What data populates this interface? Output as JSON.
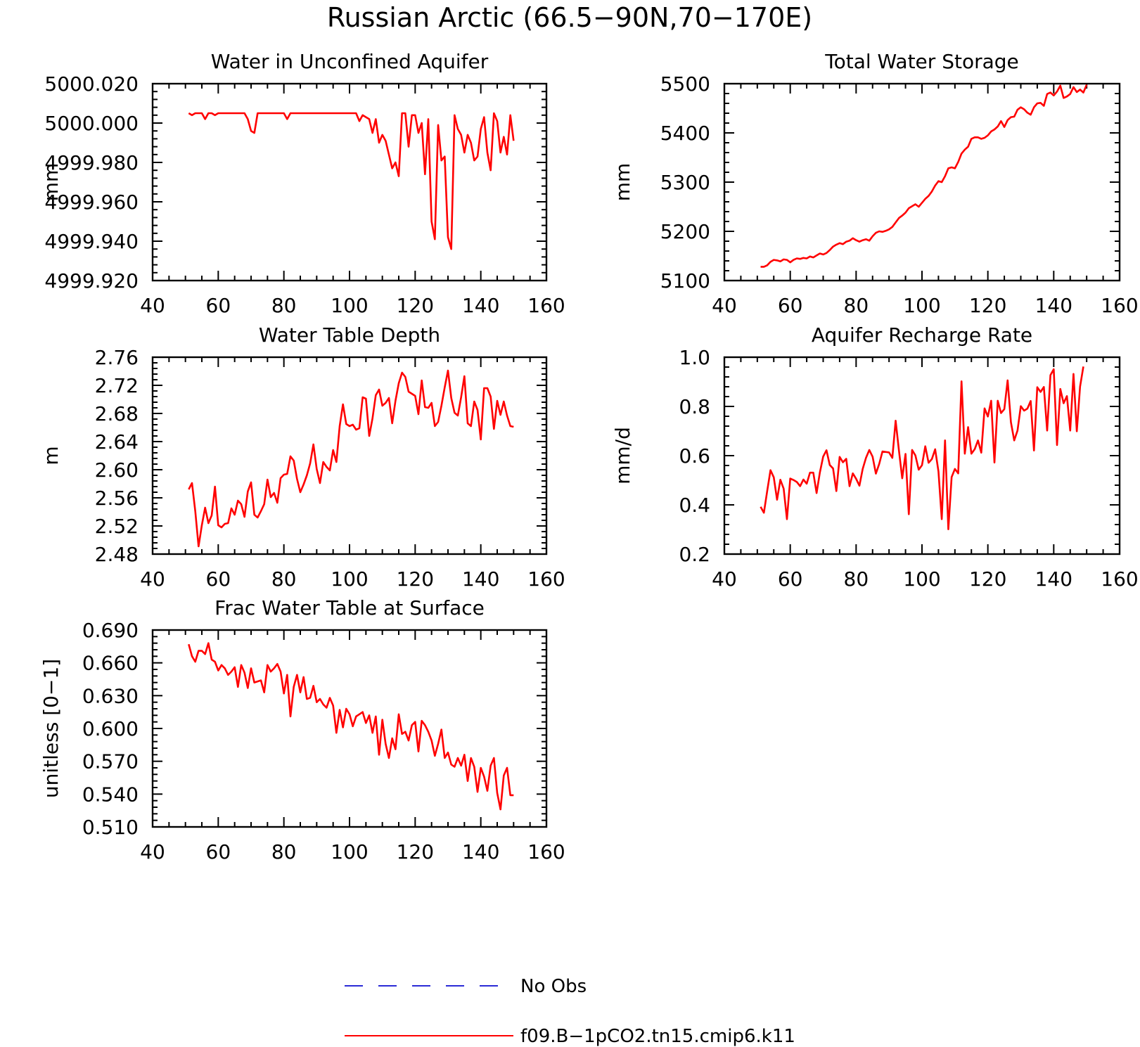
{
  "figure": {
    "title": "Russian Arctic (66.5−90N,70−170E)"
  },
  "legend": {
    "placement": "bottom-center",
    "entries": [
      {
        "label": "No Obs",
        "color": "#2b2bd6",
        "style": "dashed"
      },
      {
        "label": "f09.B−1pCO2.tn15.cmip6.k11",
        "color": "#ff0000",
        "style": "solid"
      }
    ]
  },
  "chart_data": [
    {
      "type": "line",
      "title": "Water in Unconfined Aquifer",
      "ylabel": "mm",
      "xlim": [
        40,
        160
      ],
      "ylim": [
        4999.92,
        5000.02
      ],
      "xticks": [
        "40",
        "60",
        "80",
        "100",
        "120",
        "140",
        "160"
      ],
      "yticks": [
        "4999.920",
        "4999.940",
        "4999.960",
        "4999.980",
        "5000.000",
        "5000.020"
      ],
      "x_start": 51,
      "x_step": 1,
      "series": [
        {
          "color": "#ff0000",
          "values": [
            5000.005,
            5000.004,
            5000.005,
            5000.005,
            5000.005,
            5000.002,
            5000.005,
            5000.005,
            5000.004,
            5000.005,
            5000.005,
            5000.005,
            5000.005,
            5000.005,
            5000.005,
            5000.005,
            5000.005,
            5000.005,
            5000.002,
            4999.996,
            4999.995,
            5000.005,
            5000.005,
            5000.005,
            5000.005,
            5000.005,
            5000.005,
            5000.005,
            5000.005,
            5000.005,
            5000.002,
            5000.005,
            5000.005,
            5000.005,
            5000.005,
            5000.005,
            5000.005,
            5000.005,
            5000.005,
            5000.005,
            5000.005,
            5000.005,
            5000.005,
            5000.005,
            5000.005,
            5000.005,
            5000.005,
            5000.005,
            5000.005,
            5000.005,
            5000.005,
            5000.005,
            5000.001,
            5000.004,
            5000.003,
            5000.002,
            4999.995,
            5000.002,
            4999.99,
            4999.994,
            4999.991,
            4999.984,
            4999.977,
            4999.98,
            4999.973,
            5000.005,
            5000.005,
            4999.988,
            5000.004,
            5000.004,
            4999.995,
            5000.0,
            4999.974,
            5000.002,
            4999.95,
            4999.941,
            4999.999,
            4999.981,
            4999.983,
            4999.942,
            4999.936,
            5000.004,
            4999.997,
            4999.994,
            4999.985,
            4999.994,
            4999.99,
            4999.981,
            4999.983,
            4999.997,
            5000.003,
            4999.985,
            4999.976,
            5000.005,
            5000.001,
            4999.985,
            4999.993,
            4999.984,
            5000.004,
            4999.991
          ]
        }
      ]
    },
    {
      "type": "line",
      "title": "Total Water Storage",
      "ylabel": "mm",
      "xlim": [
        40,
        160
      ],
      "ylim": [
        5100,
        5500
      ],
      "xticks": [
        "40",
        "60",
        "80",
        "100",
        "120",
        "140",
        "160"
      ],
      "yticks": [
        "5100",
        "5200",
        "5300",
        "5400",
        "5500"
      ],
      "x_start": 51,
      "x_step": 1,
      "series": [
        {
          "color": "#ff0000",
          "values": [
            5128,
            5128,
            5131,
            5138,
            5142,
            5141,
            5139,
            5143,
            5142,
            5137,
            5142,
            5145,
            5144,
            5146,
            5145,
            5149,
            5147,
            5151,
            5155,
            5153,
            5156,
            5162,
            5169,
            5173,
            5176,
            5174,
            5179,
            5181,
            5186,
            5182,
            5179,
            5182,
            5184,
            5181,
            5190,
            5197,
            5200,
            5199,
            5201,
            5204,
            5209,
            5218,
            5227,
            5232,
            5238,
            5247,
            5251,
            5255,
            5250,
            5258,
            5266,
            5272,
            5281,
            5293,
            5302,
            5300,
            5312,
            5328,
            5330,
            5328,
            5341,
            5358,
            5366,
            5372,
            5388,
            5391,
            5391,
            5388,
            5390,
            5395,
            5403,
            5407,
            5413,
            5424,
            5412,
            5426,
            5432,
            5433,
            5447,
            5452,
            5448,
            5441,
            5437,
            5452,
            5460,
            5461,
            5455,
            5479,
            5482,
            5476,
            5484,
            5496,
            5471,
            5474,
            5479,
            5493,
            5483,
            5488,
            5482,
            5498
          ]
        }
      ]
    },
    {
      "type": "line",
      "title": "Water Table Depth",
      "ylabel": "m",
      "xlim": [
        40,
        160
      ],
      "ylim": [
        2.48,
        2.76
      ],
      "xticks": [
        "40",
        "60",
        "80",
        "100",
        "120",
        "140",
        "160"
      ],
      "yticks": [
        "2.48",
        "2.52",
        "2.56",
        "2.60",
        "2.64",
        "2.68",
        "2.72",
        "2.76"
      ],
      "x_start": 51,
      "x_step": 1,
      "series": [
        {
          "color": "#ff0000",
          "values": [
            2.572,
            2.581,
            2.541,
            2.491,
            2.521,
            2.546,
            2.524,
            2.535,
            2.576,
            2.521,
            2.518,
            2.523,
            2.524,
            2.545,
            2.536,
            2.556,
            2.551,
            2.533,
            2.569,
            2.582,
            2.536,
            2.532,
            2.541,
            2.551,
            2.586,
            2.561,
            2.567,
            2.553,
            2.588,
            2.593,
            2.594,
            2.619,
            2.613,
            2.587,
            2.568,
            2.579,
            2.592,
            2.609,
            2.636,
            2.601,
            2.581,
            2.611,
            2.604,
            2.599,
            2.628,
            2.611,
            2.662,
            2.693,
            2.665,
            2.662,
            2.664,
            2.657,
            2.659,
            2.703,
            2.701,
            2.648,
            2.673,
            2.706,
            2.714,
            2.691,
            2.695,
            2.702,
            2.666,
            2.698,
            2.723,
            2.738,
            2.732,
            2.711,
            2.708,
            2.705,
            2.679,
            2.727,
            2.689,
            2.688,
            2.695,
            2.662,
            2.668,
            2.691,
            2.717,
            2.741,
            2.702,
            2.681,
            2.677,
            2.703,
            2.733,
            2.666,
            2.662,
            2.697,
            2.685,
            2.643,
            2.716,
            2.716,
            2.704,
            2.658,
            2.698,
            2.678,
            2.697,
            2.677,
            2.662,
            2.661
          ]
        }
      ]
    },
    {
      "type": "line",
      "title": "Aquifer Recharge Rate",
      "ylabel": "mm/d",
      "xlim": [
        40,
        160
      ],
      "ylim": [
        0.2,
        1.0
      ],
      "xticks": [
        "40",
        "60",
        "80",
        "100",
        "120",
        "140",
        "160"
      ],
      "yticks": [
        "0.2",
        "0.4",
        "0.6",
        "0.8",
        "1.0"
      ],
      "x_start": 51,
      "x_step": 1,
      "series": [
        {
          "color": "#ff0000",
          "values": [
            0.392,
            0.368,
            0.456,
            0.541,
            0.512,
            0.421,
            0.502,
            0.466,
            0.342,
            0.507,
            0.501,
            0.493,
            0.476,
            0.503,
            0.486,
            0.531,
            0.531,
            0.448,
            0.532,
            0.596,
            0.622,
            0.562,
            0.548,
            0.456,
            0.595,
            0.573,
            0.587,
            0.476,
            0.528,
            0.506,
            0.478,
            0.546,
            0.591,
            0.623,
            0.596,
            0.527,
            0.566,
            0.617,
            0.615,
            0.613,
            0.591,
            0.742,
            0.621,
            0.508,
            0.607,
            0.362,
            0.623,
            0.601,
            0.543,
            0.561,
            0.638,
            0.571,
            0.586,
            0.626,
            0.536,
            0.342,
            0.662,
            0.301,
            0.513,
            0.546,
            0.528,
            0.902,
            0.608,
            0.716,
            0.608,
            0.626,
            0.662,
            0.612,
            0.792,
            0.759,
            0.823,
            0.572,
            0.823,
            0.773,
            0.789,
            0.906,
            0.736,
            0.662,
            0.702,
            0.801,
            0.783,
            0.791,
            0.822,
            0.621,
            0.878,
            0.859,
            0.879,
            0.702,
            0.927,
            0.951,
            0.643,
            0.871,
            0.813,
            0.842,
            0.702,
            0.932,
            0.699,
            0.881,
            0.962
          ]
        }
      ]
    },
    {
      "type": "line",
      "title": "Frac Water Table at Surface",
      "ylabel": "unitless [0−1]",
      "xlim": [
        40,
        160
      ],
      "ylim": [
        0.51,
        0.69
      ],
      "xticks": [
        "40",
        "60",
        "80",
        "100",
        "120",
        "140",
        "160"
      ],
      "yticks": [
        "0.510",
        "0.540",
        "0.570",
        "0.600",
        "0.630",
        "0.660",
        "0.690"
      ],
      "x_start": 51,
      "x_step": 1,
      "series": [
        {
          "color": "#ff0000",
          "values": [
            0.677,
            0.666,
            0.661,
            0.671,
            0.671,
            0.668,
            0.678,
            0.663,
            0.661,
            0.653,
            0.658,
            0.655,
            0.649,
            0.652,
            0.656,
            0.638,
            0.658,
            0.651,
            0.637,
            0.655,
            0.642,
            0.643,
            0.644,
            0.633,
            0.658,
            0.652,
            0.655,
            0.659,
            0.652,
            0.632,
            0.649,
            0.611,
            0.638,
            0.649,
            0.633,
            0.647,
            0.627,
            0.628,
            0.639,
            0.624,
            0.627,
            0.622,
            0.619,
            0.628,
            0.621,
            0.596,
            0.617,
            0.601,
            0.618,
            0.613,
            0.602,
            0.611,
            0.613,
            0.615,
            0.605,
            0.612,
            0.596,
            0.611,
            0.576,
            0.608,
            0.586,
            0.573,
            0.591,
            0.581,
            0.613,
            0.595,
            0.597,
            0.589,
            0.603,
            0.606,
            0.579,
            0.607,
            0.603,
            0.597,
            0.589,
            0.575,
            0.586,
            0.599,
            0.573,
            0.578,
            0.567,
            0.565,
            0.573,
            0.566,
            0.576,
            0.552,
            0.573,
            0.565,
            0.542,
            0.564,
            0.556,
            0.543,
            0.566,
            0.573,
            0.541,
            0.526,
            0.557,
            0.564,
            0.539,
            0.539
          ]
        }
      ]
    }
  ]
}
